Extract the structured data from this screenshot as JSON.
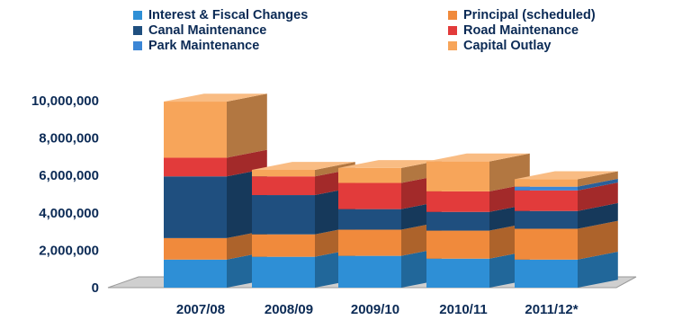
{
  "chart_data": {
    "type": "bar",
    "stacked": true,
    "style": "3d",
    "categories": [
      "2007/08",
      "2008/09",
      "2009/10",
      "2010/11",
      "2011/12*"
    ],
    "series": [
      {
        "name": "Interest & Fiscal Changes",
        "color": "#2e8fd6",
        "values": [
          1500000,
          1650000,
          1700000,
          1550000,
          1500000
        ]
      },
      {
        "name": "Principal (scheduled)",
        "color": "#f08a3c",
        "values": [
          1150000,
          1200000,
          1400000,
          1500000,
          1650000
        ]
      },
      {
        "name": "Canal Maintenance",
        "color": "#1f4f7f",
        "values": [
          3300000,
          2100000,
          1100000,
          1000000,
          950000
        ]
      },
      {
        "name": "Road Maintenance",
        "color": "#e23b3b",
        "values": [
          1000000,
          1000000,
          1400000,
          1100000,
          1100000
        ]
      },
      {
        "name": "Park Maintenance",
        "color": "#3b86d6",
        "values": [
          0,
          0,
          0,
          0,
          200000
        ]
      },
      {
        "name": "Capital Outlay",
        "color": "#f7a55a",
        "values": [
          3000000,
          350000,
          800000,
          1600000,
          400000
        ]
      }
    ],
    "ylim": [
      0,
      10000000
    ],
    "yticks": [
      0,
      2000000,
      4000000,
      6000000,
      8000000,
      10000000
    ],
    "ytick_labels": [
      "0",
      "2,000,000",
      "4,000,000",
      "6,000,000",
      "8,000,000",
      "10,000,000"
    ],
    "grid": false,
    "legend_placement": "top",
    "title": "",
    "xlabel": "",
    "ylabel": ""
  }
}
